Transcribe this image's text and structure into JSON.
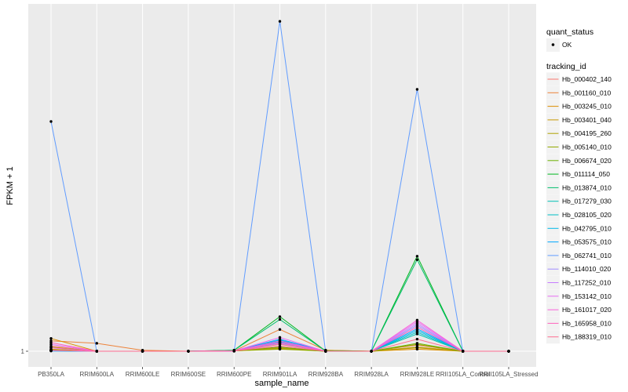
{
  "chart_data": {
    "type": "line",
    "xlabel": "sample_name",
    "ylabel": "FPKM + 1",
    "y_tick_labels": [
      "1"
    ],
    "ylim": [
      1,
      80
    ],
    "grid": true,
    "legend_placement": "right",
    "categories": [
      "PB350LA",
      "RRIM600LA",
      "RRIM600LE",
      "RRIM600SE",
      "RRIM600PE",
      "RRIM901LA",
      "RRIM928BA",
      "RRIM928LA",
      "RRIM928LE",
      "RRII105LA_Control",
      "RRII105LA_Stressed"
    ],
    "shape_legend": {
      "title": "quant_status",
      "items": [
        "OK"
      ]
    },
    "color_legend_title": "tracking_id",
    "series": [
      {
        "name": "Hb_000402_140",
        "color": "#F8766D",
        "values": [
          2.5,
          1,
          1,
          1,
          1.1,
          3.0,
          1,
          1,
          2.2,
          1,
          1
        ]
      },
      {
        "name": "Hb_001160_010",
        "color": "#EC8239",
        "values": [
          4.0,
          3.3,
          1.3,
          1,
          1.1,
          7.3,
          1.3,
          1,
          2.8,
          1,
          1
        ]
      },
      {
        "name": "Hb_003245_010",
        "color": "#DB8E00",
        "values": [
          4.7,
          1,
          1,
          1,
          1.1,
          1.8,
          1,
          1,
          1.6,
          1,
          1
        ]
      },
      {
        "name": "Hb_003401_040",
        "color": "#C79800",
        "values": [
          1.6,
          1,
          1,
          1,
          1.1,
          1.8,
          1.3,
          1,
          2.0,
          1,
          1
        ]
      },
      {
        "name": "Hb_004195_260",
        "color": "#AFA100",
        "values": [
          2.2,
          1,
          1,
          1,
          1.1,
          2.0,
          1,
          1,
          2.2,
          1,
          1
        ]
      },
      {
        "name": "Hb_005140_010",
        "color": "#93AA00",
        "values": [
          1.4,
          1,
          1,
          1,
          1.1,
          1.6,
          1,
          1,
          3.0,
          1,
          1
        ]
      },
      {
        "name": "Hb_006674_020",
        "color": "#6BB100",
        "values": [
          1.3,
          1,
          1,
          1,
          1.2,
          2.2,
          1,
          1,
          3.3,
          1,
          1
        ]
      },
      {
        "name": "Hb_011114_050",
        "color": "#00B81F",
        "values": [
          1.2,
          1,
          1,
          1,
          1.3,
          11.0,
          1.1,
          1,
          28.5,
          1,
          1
        ]
      },
      {
        "name": "Hb_013874_010",
        "color": "#00BE6C",
        "values": [
          1.2,
          1,
          1,
          1,
          1.3,
          10.2,
          1.1,
          1,
          27.5,
          1,
          1
        ]
      },
      {
        "name": "Hb_017279_030",
        "color": "#00C0B4",
        "values": [
          1.2,
          1,
          1,
          1,
          1.1,
          3.5,
          1,
          1,
          6.0,
          1,
          1
        ]
      },
      {
        "name": "Hb_028105_020",
        "color": "#00BFC4",
        "values": [
          1.1,
          1,
          1,
          1,
          1.1,
          3.8,
          1,
          1,
          6.5,
          1,
          1
        ]
      },
      {
        "name": "Hb_042795_010",
        "color": "#00B8E7",
        "values": [
          1.1,
          1,
          1,
          1,
          1.1,
          4.2,
          1,
          1,
          7.0,
          1,
          1
        ]
      },
      {
        "name": "Hb_053575_010",
        "color": "#00A9FF",
        "values": [
          1.1,
          1,
          1,
          1,
          1.1,
          4.5,
          1,
          1,
          7.5,
          1,
          1
        ]
      },
      {
        "name": "Hb_062741_010",
        "color": "#619CFF",
        "values": [
          67.5,
          1,
          1,
          1,
          1,
          96.5,
          1,
          1,
          76.8,
          1,
          1
        ]
      },
      {
        "name": "Hb_114010_020",
        "color": "#9F8CFF",
        "values": [
          1.2,
          1,
          1,
          1,
          1.1,
          3.2,
          1,
          1,
          8.5,
          1,
          1
        ]
      },
      {
        "name": "Hb_117252_010",
        "color": "#C77CFF",
        "values": [
          1.2,
          1,
          1,
          1,
          1.1,
          3.6,
          1,
          1,
          9.0,
          1,
          1
        ]
      },
      {
        "name": "Hb_153142_010",
        "color": "#E76BF3",
        "values": [
          3.0,
          1,
          1,
          1,
          1.1,
          5.0,
          1,
          1,
          9.5,
          1,
          1
        ]
      },
      {
        "name": "Hb_161017_020",
        "color": "#FA62DB",
        "values": [
          2.0,
          1,
          1,
          1,
          1.1,
          4.0,
          1,
          1,
          10.0,
          1,
          1
        ]
      },
      {
        "name": "Hb_165958_010",
        "color": "#FF62BC",
        "values": [
          3.5,
          1,
          1,
          1,
          1.1,
          3.4,
          1,
          1,
          8.0,
          1,
          1
        ]
      },
      {
        "name": "Hb_188319_010",
        "color": "#FF6C91",
        "values": [
          1.3,
          1,
          1,
          1,
          1.1,
          2.5,
          1,
          1,
          4.5,
          1,
          1
        ]
      }
    ]
  }
}
